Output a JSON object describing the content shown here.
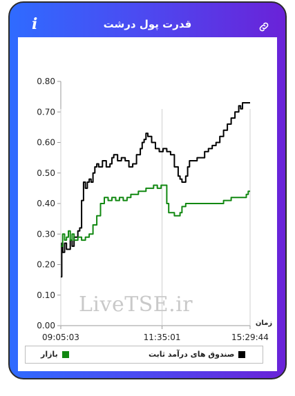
{
  "header": {
    "title": "قدرت پول درشت",
    "info_icon": "info-icon",
    "link_icon": "link-icon"
  },
  "watermark": "LiveTSE.ir",
  "colors": {
    "fixed_income": "#000000",
    "market": "#118811",
    "gradient_start": "#2f6bff",
    "gradient_end": "#6a22d8"
  },
  "chart_data": {
    "type": "line",
    "title": "قدرت پول درشت",
    "xlabel": "زمان",
    "ylabel": "",
    "x_range": [
      "09:05:03",
      "15:29:44"
    ],
    "xticks": [
      "09:05:03",
      "11:35:01",
      "15:29:44"
    ],
    "ylim": [
      0,
      0.8
    ],
    "yticks": [
      "0.00",
      "0.10",
      "0.20",
      "0.30",
      "0.40",
      "0.50",
      "0.60",
      "0.70",
      "0.80"
    ],
    "grid": false,
    "legend_position": "bottom",
    "series": [
      {
        "name": "صندوق های درآمد ثابت",
        "color": "#000000",
        "points": [
          [
            0,
            0.16
          ],
          [
            0.005,
            0.27
          ],
          [
            0.01,
            0.24
          ],
          [
            0.02,
            0.27
          ],
          [
            0.03,
            0.25
          ],
          [
            0.05,
            0.28
          ],
          [
            0.06,
            0.26
          ],
          [
            0.07,
            0.29
          ],
          [
            0.09,
            0.31
          ],
          [
            0.1,
            0.32
          ],
          [
            0.11,
            0.41
          ],
          [
            0.12,
            0.47
          ],
          [
            0.13,
            0.45
          ],
          [
            0.14,
            0.47
          ],
          [
            0.15,
            0.48
          ],
          [
            0.16,
            0.47
          ],
          [
            0.17,
            0.5
          ],
          [
            0.18,
            0.52
          ],
          [
            0.19,
            0.53
          ],
          [
            0.2,
            0.52
          ],
          [
            0.22,
            0.54
          ],
          [
            0.24,
            0.52
          ],
          [
            0.26,
            0.53
          ],
          [
            0.27,
            0.55
          ],
          [
            0.28,
            0.56
          ],
          [
            0.3,
            0.54
          ],
          [
            0.32,
            0.55
          ],
          [
            0.34,
            0.54
          ],
          [
            0.36,
            0.52
          ],
          [
            0.38,
            0.53
          ],
          [
            0.4,
            0.56
          ],
          [
            0.42,
            0.58
          ],
          [
            0.43,
            0.6
          ],
          [
            0.44,
            0.61
          ],
          [
            0.45,
            0.63
          ],
          [
            0.46,
            0.62
          ],
          [
            0.48,
            0.6
          ],
          [
            0.5,
            0.58
          ],
          [
            0.52,
            0.57
          ],
          [
            0.54,
            0.58
          ],
          [
            0.56,
            0.57
          ],
          [
            0.58,
            0.56
          ],
          [
            0.6,
            0.52
          ],
          [
            0.62,
            0.49
          ],
          [
            0.63,
            0.48
          ],
          [
            0.64,
            0.47
          ],
          [
            0.66,
            0.49
          ],
          [
            0.67,
            0.52
          ],
          [
            0.68,
            0.54
          ],
          [
            0.7,
            0.54
          ],
          [
            0.72,
            0.55
          ],
          [
            0.74,
            0.55
          ],
          [
            0.76,
            0.57
          ],
          [
            0.78,
            0.58
          ],
          [
            0.8,
            0.59
          ],
          [
            0.82,
            0.6
          ],
          [
            0.84,
            0.62
          ],
          [
            0.86,
            0.64
          ],
          [
            0.88,
            0.66
          ],
          [
            0.9,
            0.68
          ],
          [
            0.92,
            0.7
          ],
          [
            0.94,
            0.72
          ],
          [
            0.95,
            0.71
          ],
          [
            0.96,
            0.73
          ],
          [
            0.98,
            0.73
          ],
          [
            1.0,
            0.73
          ]
        ]
      },
      {
        "name": "بازار",
        "color": "#118811",
        "points": [
          [
            0,
            0.26
          ],
          [
            0.01,
            0.3
          ],
          [
            0.02,
            0.28
          ],
          [
            0.03,
            0.29
          ],
          [
            0.04,
            0.31
          ],
          [
            0.05,
            0.28
          ],
          [
            0.06,
            0.3
          ],
          [
            0.07,
            0.28
          ],
          [
            0.09,
            0.29
          ],
          [
            0.11,
            0.28
          ],
          [
            0.13,
            0.29
          ],
          [
            0.15,
            0.3
          ],
          [
            0.17,
            0.33
          ],
          [
            0.19,
            0.36
          ],
          [
            0.21,
            0.4
          ],
          [
            0.23,
            0.42
          ],
          [
            0.25,
            0.41
          ],
          [
            0.27,
            0.42
          ],
          [
            0.29,
            0.41
          ],
          [
            0.31,
            0.42
          ],
          [
            0.33,
            0.41
          ],
          [
            0.35,
            0.42
          ],
          [
            0.37,
            0.43
          ],
          [
            0.39,
            0.43
          ],
          [
            0.41,
            0.44
          ],
          [
            0.43,
            0.44
          ],
          [
            0.45,
            0.45
          ],
          [
            0.47,
            0.45
          ],
          [
            0.49,
            0.46
          ],
          [
            0.51,
            0.45
          ],
          [
            0.53,
            0.46
          ],
          [
            0.55,
            0.46
          ],
          [
            0.56,
            0.4
          ],
          [
            0.57,
            0.37
          ],
          [
            0.58,
            0.37
          ],
          [
            0.6,
            0.36
          ],
          [
            0.62,
            0.36
          ],
          [
            0.63,
            0.37
          ],
          [
            0.64,
            0.39
          ],
          [
            0.66,
            0.4
          ],
          [
            0.7,
            0.4
          ],
          [
            0.74,
            0.4
          ],
          [
            0.78,
            0.4
          ],
          [
            0.82,
            0.4
          ],
          [
            0.86,
            0.41
          ],
          [
            0.9,
            0.42
          ],
          [
            0.94,
            0.42
          ],
          [
            0.96,
            0.42
          ],
          [
            0.98,
            0.43
          ],
          [
            0.99,
            0.44
          ],
          [
            1.0,
            0.44
          ]
        ]
      }
    ]
  }
}
